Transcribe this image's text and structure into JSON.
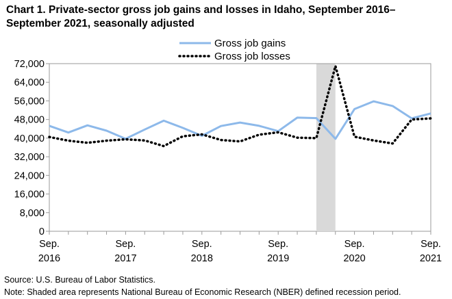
{
  "title": "Chart 1. Private-sector gross job gains and losses in Idaho, September 2016–September 2021, seasonally  adjusted",
  "source": "Source: U.S. Bureau of Labor Statistics.",
  "note": "Note: Shaded area represents National Bureau of Economic Research (NBER) defined recession period.",
  "chart_data": {
    "type": "line",
    "title": "Chart 1. Private-sector gross job gains and losses in Idaho, September 2016–September 2021, seasonally  adjusted",
    "x": [
      "Sep 2016",
      "Dec 2016",
      "Mar 2017",
      "Jun 2017",
      "Sep 2017",
      "Dec 2017",
      "Mar 2018",
      "Jun 2018",
      "Sep 2018",
      "Dec 2018",
      "Mar 2019",
      "Jun 2019",
      "Sep 2019",
      "Dec 2019",
      "Mar 2020",
      "Jun 2020",
      "Sep 2020",
      "Dec 2020",
      "Mar 2021",
      "Jun 2021",
      "Sep 2021"
    ],
    "x_tick_labels": [
      {
        "month": "Sep.",
        "year": "2016"
      },
      {
        "month": "Sep.",
        "year": "2017"
      },
      {
        "month": "Sep.",
        "year": "2018"
      },
      {
        "month": "Sep.",
        "year": "2019"
      },
      {
        "month": "Sep.",
        "year": "2020"
      },
      {
        "month": "Sep.",
        "year": "2021"
      }
    ],
    "series": [
      {
        "name": "Gross job gains",
        "color": "#8db9ea",
        "style": "solid",
        "values": [
          45300,
          42400,
          45500,
          43200,
          39700,
          43700,
          47500,
          44400,
          41000,
          45200,
          46700,
          45300,
          43000,
          48800,
          48600,
          39700,
          52500,
          55800,
          53800,
          48500,
          50600
        ]
      },
      {
        "name": "Gross job losses",
        "color": "#000000",
        "style": "dotted",
        "values": [
          40500,
          38900,
          38000,
          38900,
          39500,
          39000,
          36600,
          40800,
          41600,
          39200,
          38600,
          41500,
          42500,
          40200,
          40000,
          71000,
          40600,
          39000,
          37700,
          48000,
          48500
        ]
      }
    ],
    "ylim": [
      0,
      72000
    ],
    "yticks": [
      "0",
      "8,000",
      "16,000",
      "24,000",
      "32,000",
      "40,000",
      "48,000",
      "56,000",
      "64,000",
      "72,000"
    ],
    "recession_shading": {
      "from": "Mar 2020",
      "to": "Jun 2020",
      "color": "#d9d9d9"
    },
    "legend": "top-center",
    "grid": false
  }
}
